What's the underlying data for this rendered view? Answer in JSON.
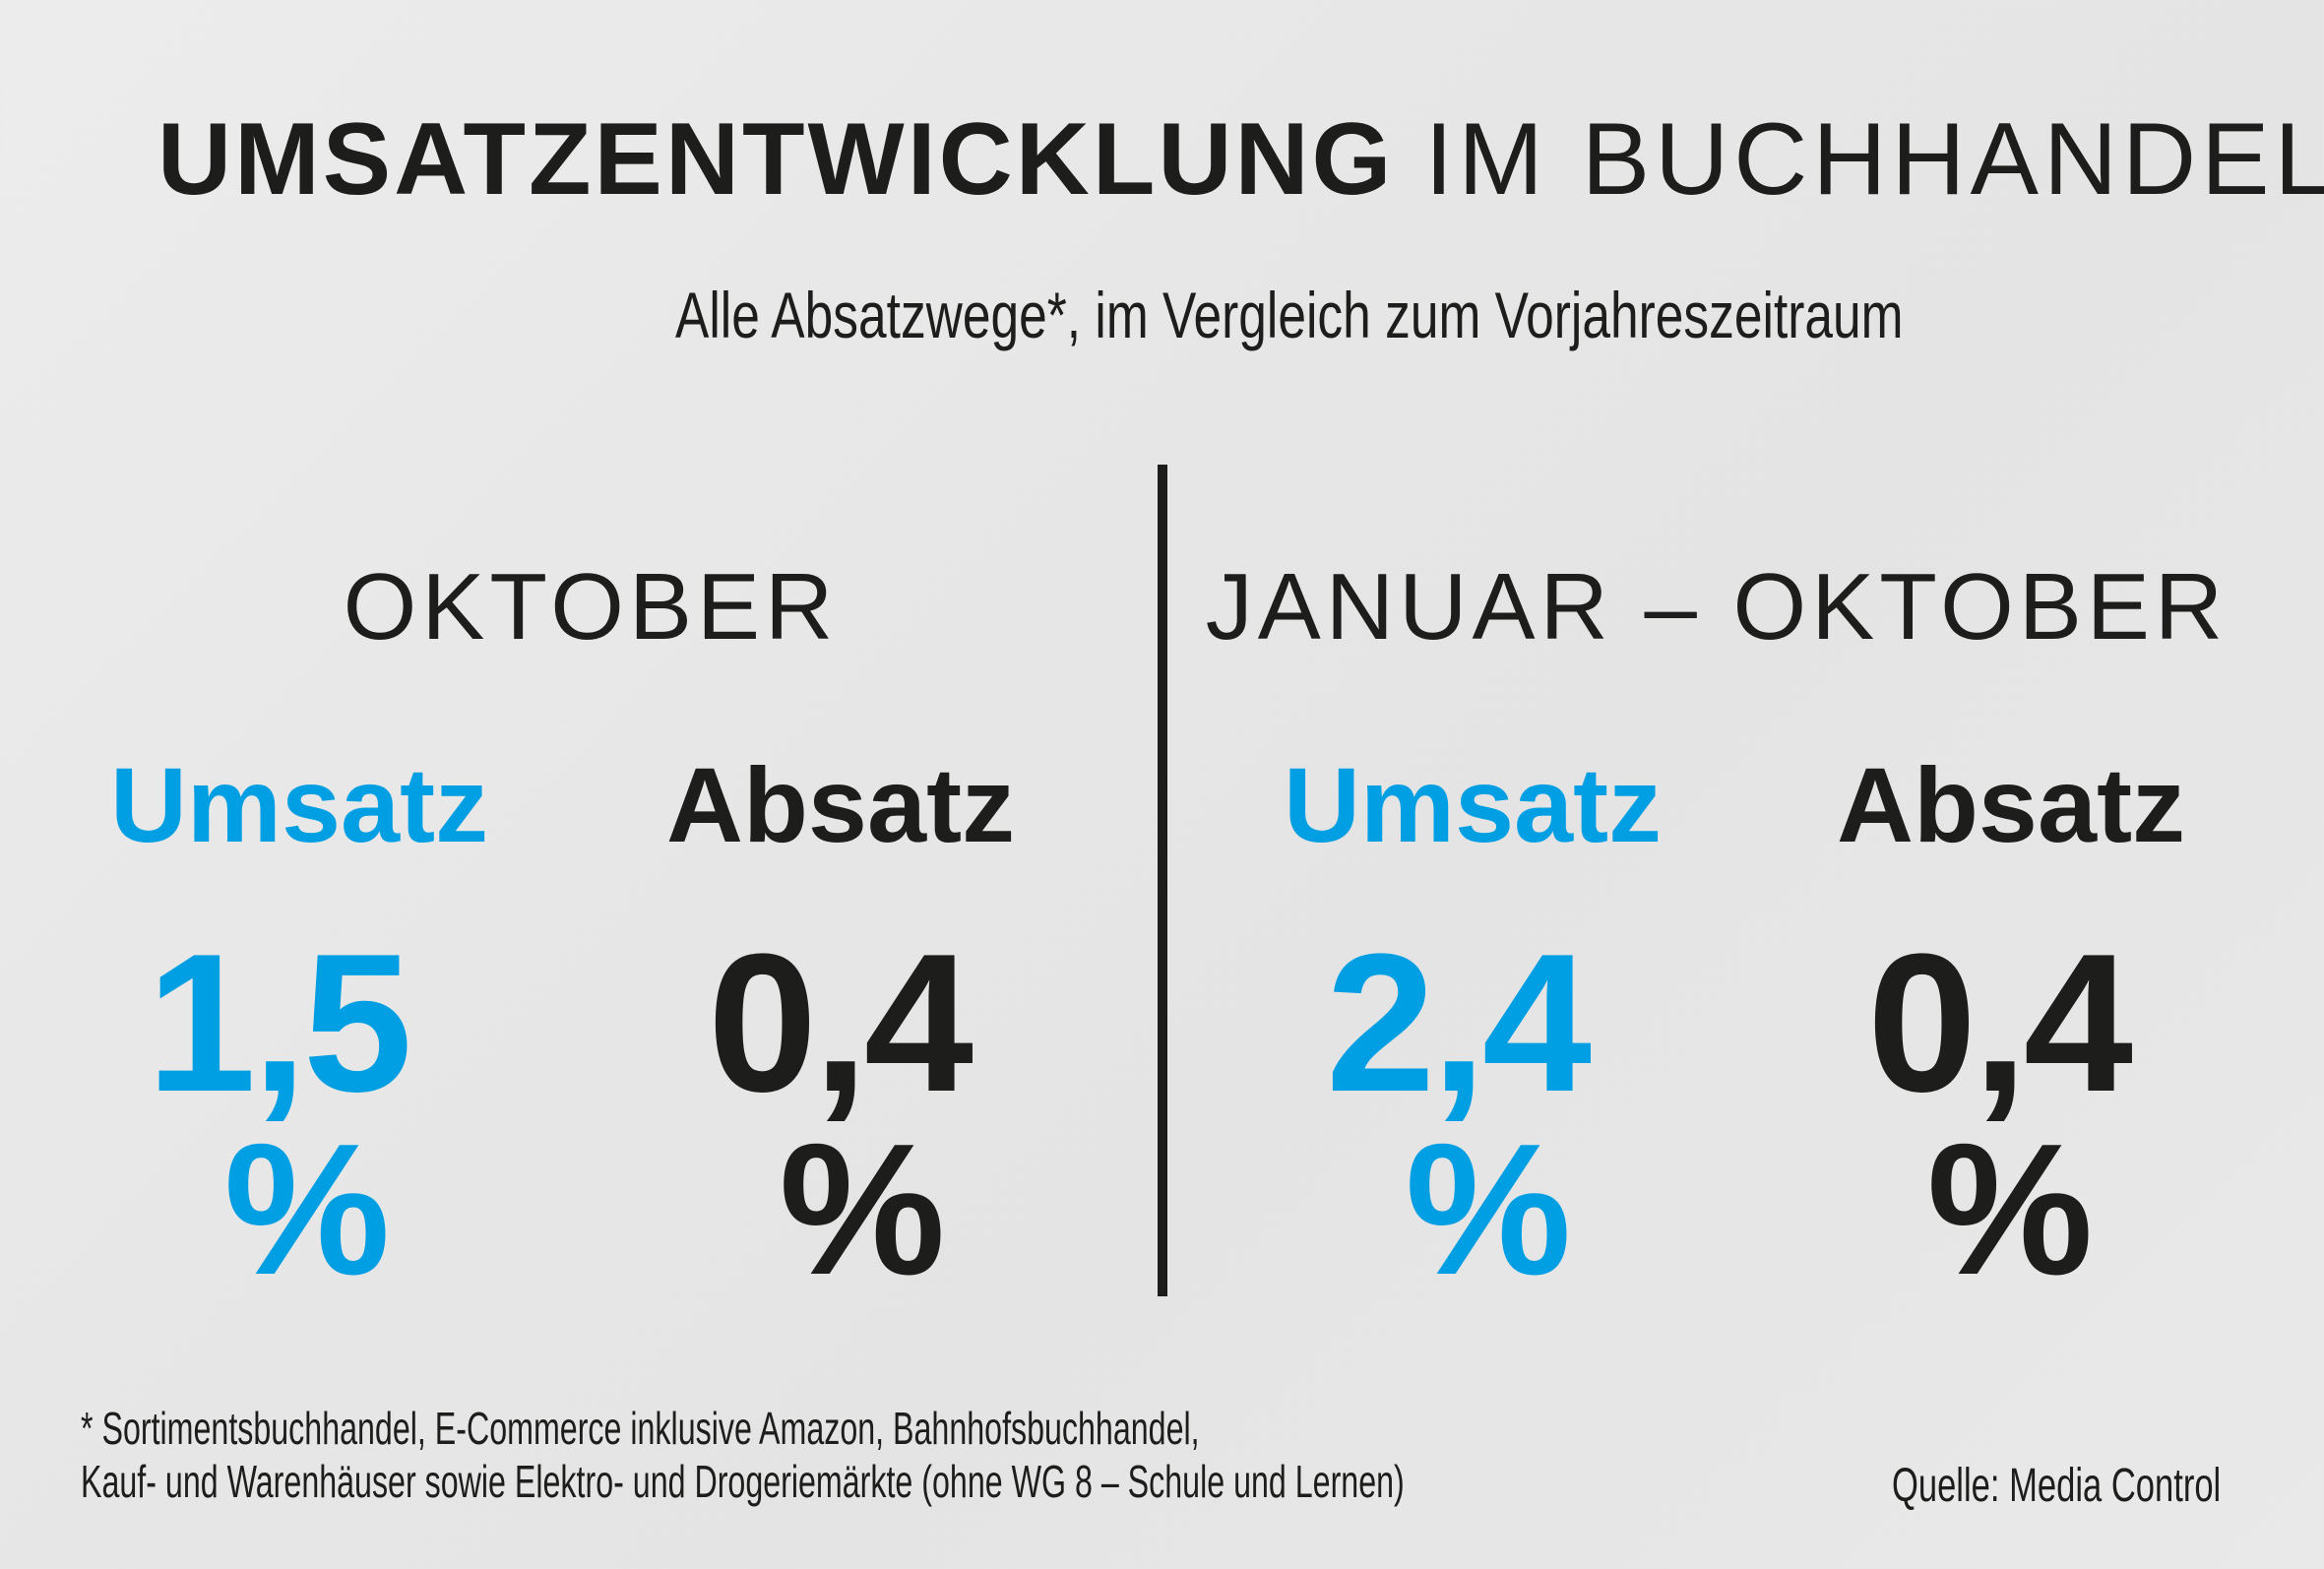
{
  "title": {
    "bold": "UMSATZENTWICKLUNG",
    "light": "IM BUCHHANDEL"
  },
  "subtitle": "Alle Absatzwege*, im Vergleich zum Vorjahreszeitraum",
  "colors": {
    "accent": "#009fe3",
    "dark": "#1d1d1b",
    "background": "#e8e8e8"
  },
  "sections": [
    {
      "period": "OKTOBER",
      "umsatz_label": "Umsatz",
      "umsatz_value": "1,5",
      "absatz_label": "Absatz",
      "absatz_value": "0,4",
      "unit": "%"
    },
    {
      "period": "JANUAR – OKTOBER",
      "umsatz_label": "Umsatz",
      "umsatz_value": "2,4",
      "absatz_label": "Absatz",
      "absatz_value": "0,4",
      "unit": "%"
    }
  ],
  "footnote": {
    "line1": "* Sortimentsbuchhandel, E-Commerce inklusive Amazon, Bahnhofsbuchhandel,",
    "line2": "Kauf- und Warenhäuser sowie Elektro- und Drogeriemärkte (ohne WG 8 – Schule und Lernen)"
  },
  "source": "Quelle: Media Control"
}
